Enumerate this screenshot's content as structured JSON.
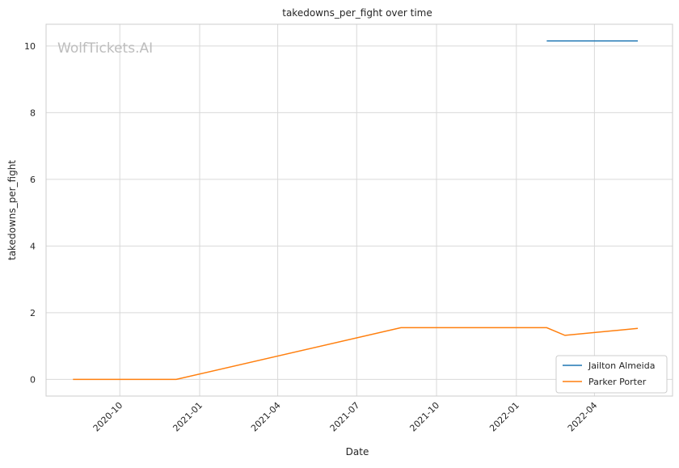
{
  "chart_data": {
    "type": "line",
    "title": "takedowns_per_fight over time",
    "xlabel": "Date",
    "ylabel": "takedowns_per_fight",
    "watermark": "WolfTickets.AI",
    "x_ticks": [
      "2020-10-01",
      "2021-01-01",
      "2021-04-01",
      "2021-07-01",
      "2021-10-01",
      "2022-01-01",
      "2022-04-01"
    ],
    "x_tick_labels": [
      "2020-10",
      "2021-01",
      "2021-04",
      "2021-07",
      "2021-10",
      "2022-01",
      "2022-04"
    ],
    "xlim": [
      "2020-07-08",
      "2022-06-30"
    ],
    "y_ticks": [
      0,
      2,
      4,
      6,
      8,
      10
    ],
    "ylim": [
      -0.5,
      10.65
    ],
    "grid": true,
    "legend_position": "lower-right",
    "series": [
      {
        "name": "Jailton Almeida",
        "color": "#1f77b4",
        "points": [
          {
            "x": "2022-02-05",
            "y": 10.15
          },
          {
            "x": "2022-05-21",
            "y": 10.15
          }
        ]
      },
      {
        "name": "Parker Porter",
        "color": "#ff7f0e",
        "points": [
          {
            "x": "2020-08-08",
            "y": 0
          },
          {
            "x": "2020-12-05",
            "y": 0
          },
          {
            "x": "2021-08-21",
            "y": 1.55
          },
          {
            "x": "2022-02-05",
            "y": 1.55
          },
          {
            "x": "2022-02-26",
            "y": 1.32
          },
          {
            "x": "2022-05-21",
            "y": 1.53
          }
        ]
      }
    ]
  }
}
